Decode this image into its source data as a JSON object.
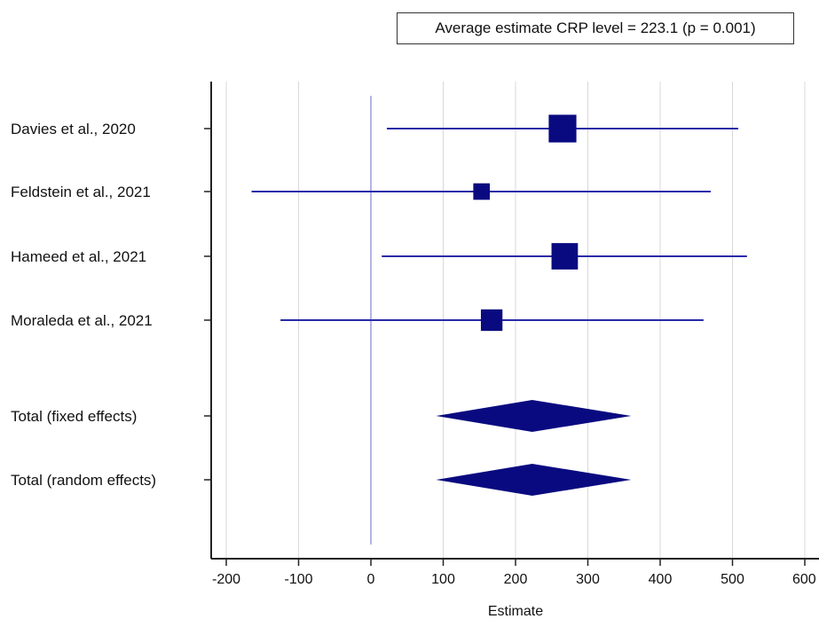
{
  "chart_data": {
    "type": "forest",
    "title": "Average estimate CRP level = 223.1 (p = 0.001)",
    "xlabel": "Estimate",
    "xlim": [
      -220,
      610
    ],
    "xticks": [
      -200,
      -100,
      0,
      100,
      200,
      300,
      400,
      500,
      600
    ],
    "xtick_labels": [
      "-200",
      "-100",
      "0",
      "100",
      "200",
      "300",
      "400",
      "500",
      "600"
    ],
    "reference_line": 0,
    "grid": true,
    "colors": {
      "marker": "#0a0a80",
      "ci_line": "#2a2aa8",
      "grid": "#d8d8d8",
      "axis": "#222222"
    },
    "studies": [
      {
        "label": "Davies et al., 2020",
        "estimate": 265,
        "ci_low": 22,
        "ci_high": 508,
        "weight": 36
      },
      {
        "label": "Feldstein et al., 2021",
        "estimate": 153,
        "ci_low": -165,
        "ci_high": 470,
        "weight": 9
      },
      {
        "label": "Hameed et al., 2021",
        "estimate": 268,
        "ci_low": 15,
        "ci_high": 520,
        "weight": 32
      },
      {
        "label": "Moraleda et al., 2021",
        "estimate": 167,
        "ci_low": -125,
        "ci_high": 460,
        "weight": 19
      }
    ],
    "totals": [
      {
        "label": "Total (fixed effects)",
        "estimate": 223.1,
        "ci_low": 90,
        "ci_high": 360
      },
      {
        "label": "Total (random effects)",
        "estimate": 223.1,
        "ci_low": 90,
        "ci_high": 360
      }
    ]
  }
}
